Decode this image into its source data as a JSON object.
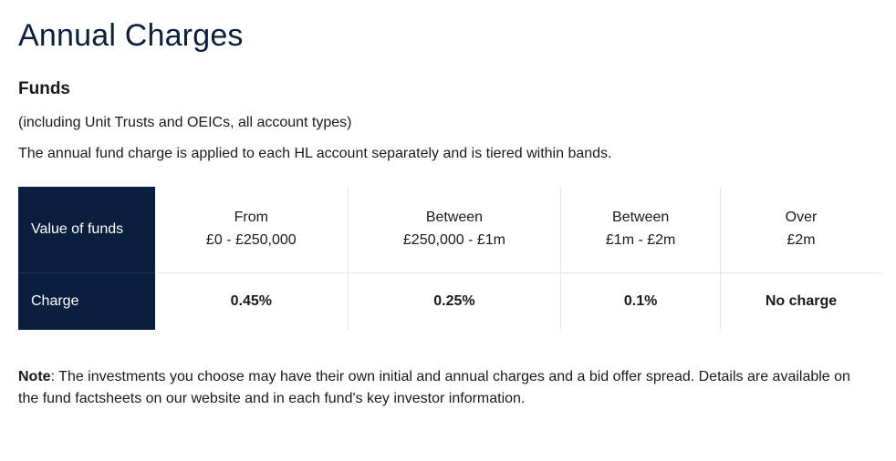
{
  "heading": "Annual Charges",
  "subheading": "Funds",
  "intro_line1": "(including Unit Trusts and OEICs, all account types)",
  "intro_line2": "The annual fund charge is applied to each HL account separately and is tiered within bands.",
  "table": {
    "row_label_1": "Value of funds",
    "row_label_2": "Charge",
    "columns": [
      {
        "range_prefix": "From",
        "range": "£0 - £250,000",
        "charge": "0.45%"
      },
      {
        "range_prefix": "Between",
        "range": "£250,000 - £1m",
        "charge": "0.25%"
      },
      {
        "range_prefix": "Between",
        "range": "£1m - £2m",
        "charge": "0.1%"
      },
      {
        "range_prefix": "Over",
        "range": "£2m",
        "charge": "No charge"
      }
    ],
    "colors": {
      "header_bg": "#0a1f3d",
      "header_text": "#ffffff",
      "border": "#e6e8ec"
    }
  },
  "note_label": "Note",
  "note_body": ": The investments you choose may have their own initial and annual charges and a bid offer spread. Details are available on the fund factsheets on our website and in each fund's key investor information."
}
